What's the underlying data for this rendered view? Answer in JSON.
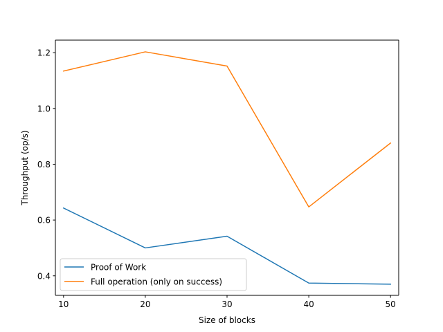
{
  "chart_data": {
    "type": "line",
    "title": "",
    "xlabel": "Size of blocks",
    "ylabel": "Throughput (op/s)",
    "x": [
      10,
      20,
      30,
      40,
      50
    ],
    "xlim": [
      9,
      51
    ],
    "ylim": [
      0.33,
      1.245
    ],
    "xticks": [
      10,
      20,
      30,
      40,
      50
    ],
    "xtick_labels": [
      "10",
      "20",
      "30",
      "40",
      "50"
    ],
    "yticks": [
      0.4,
      0.6,
      0.8,
      1.0,
      1.2
    ],
    "ytick_labels": [
      "0.4",
      "0.6",
      "0.8",
      "1.0",
      "1.2"
    ],
    "grid": false,
    "legend_position": "lower-left",
    "series": [
      {
        "name": "Proof of Work",
        "color": "#1f77b4",
        "values": [
          0.643,
          0.5,
          0.542,
          0.374,
          0.37
        ]
      },
      {
        "name": "Full operation (only on success)",
        "color": "#ff7f0e",
        "values": [
          1.134,
          1.203,
          1.152,
          0.647,
          0.876
        ]
      }
    ]
  }
}
